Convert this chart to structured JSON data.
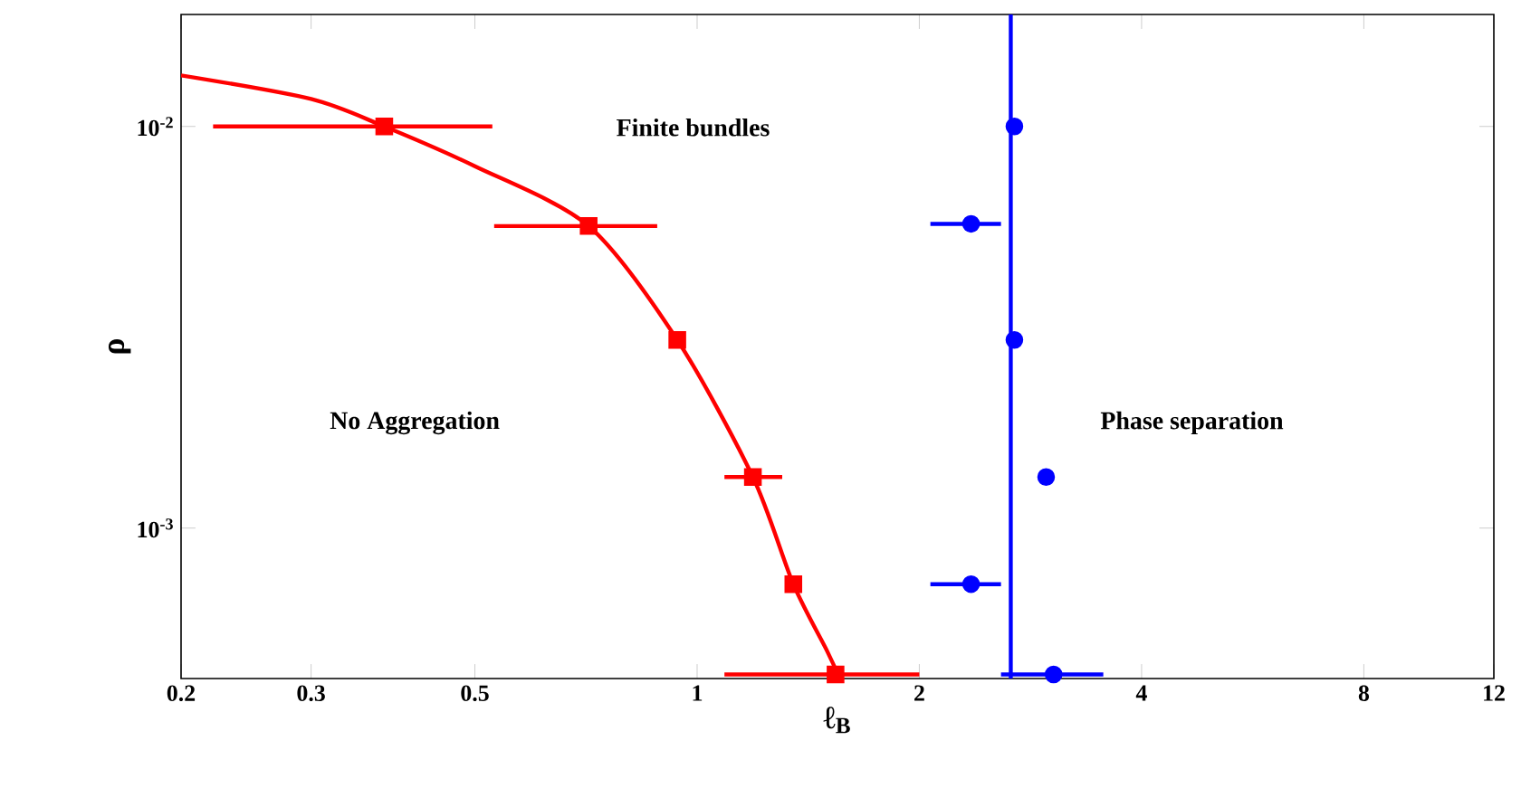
{
  "chart_data": {
    "type": "scatter",
    "xlabel": "ℓ$_{B}$",
    "ylabel": "ρ",
    "log": "xy",
    "xlim": [
      0.2,
      12
    ],
    "ylim": [
      0.000422,
      0.019
    ],
    "xticks": [
      0.2,
      0.3,
      0.5,
      1,
      2,
      4,
      8,
      12
    ],
    "yticks": [
      {
        "value": 0.01,
        "label": "10$^{-2}$"
      },
      {
        "value": 0.001,
        "label": "10$^{-3}$"
      }
    ],
    "grid": false,
    "series": [
      {
        "type": "line",
        "color": "#ff0000",
        "marker": "none",
        "x": [
          0.2,
          0.3,
          0.377,
          0.5,
          0.713,
          0.94,
          1.19,
          1.35,
          1.5,
          1.56
        ],
        "values": [
          0.0134,
          0.0117,
          0.01,
          0.00796,
          0.00565,
          0.00294,
          0.00134,
          0.000725,
          0.000494,
          0.000422
        ]
      },
      {
        "color": "#ff0000",
        "marker": "square",
        "x": [
          0.377,
          0.713,
          0.94,
          1.19,
          1.35,
          1.54
        ],
        "values": [
          0.01,
          0.00565,
          0.00294,
          0.00134,
          0.000725,
          0.000432
        ],
        "xerrors": [
          [
            0.221,
            0.528
          ],
          [
            0.531,
            0.883
          ],
          null,
          [
            1.089,
            1.304
          ],
          null,
          [
            1.089,
            2.0
          ]
        ]
      },
      {
        "color": "#0000ff",
        "marker": "circle",
        "x": [
          2.69,
          2.35,
          2.69,
          2.97,
          2.35,
          3.04
        ],
        "values": [
          0.01,
          0.00572,
          0.00294,
          0.00134,
          0.000725,
          0.000432
        ],
        "xerrors": [
          null,
          [
            2.07,
            2.58
          ],
          null,
          null,
          [
            2.07,
            2.58
          ],
          [
            2.58,
            3.55
          ]
        ]
      }
    ],
    "ref_lines": [
      {
        "axis": "x",
        "value": 2.66,
        "color": "#0000ff"
      }
    ],
    "annotations": [
      "Finite bundles",
      "No Aggregation",
      "Phase separation"
    ]
  }
}
